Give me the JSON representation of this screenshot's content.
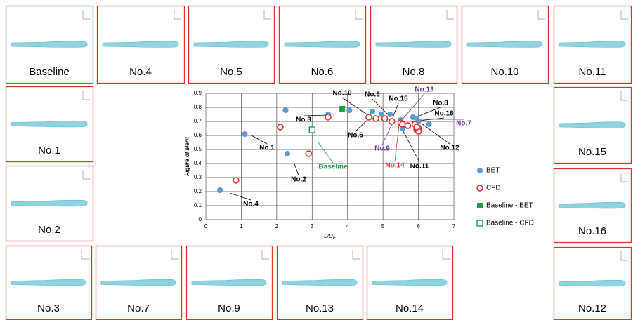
{
  "chart_data": {
    "type": "scatter",
    "y_label": "Figure of Merit",
    "x_label": "L/D",
    "x_label_sub": "E",
    "xlim": [
      0,
      7
    ],
    "xticks": [
      0,
      1,
      2,
      3,
      4,
      5,
      6,
      7
    ],
    "ylim": [
      0,
      0.9
    ],
    "yticks": [
      0,
      0.1,
      0.2,
      0.3,
      0.4,
      0.5,
      0.6,
      0.7,
      0.8,
      0.9
    ],
    "grid": true,
    "legend": "right",
    "series": [
      {
        "name": "BET",
        "color": "#5b9bd5",
        "marker": "filled-circle",
        "x": [
          0.4,
          1.1,
          2.3,
          2.25,
          3.45,
          4.05,
          4.7,
          4.95,
          5.2,
          5.5,
          5.55,
          5.85,
          5.95,
          6.0,
          6.3,
          6.0
        ],
        "values": [
          0.21,
          0.61,
          0.47,
          0.78,
          0.75,
          0.78,
          0.77,
          0.75,
          0.75,
          0.71,
          0.65,
          0.73,
          0.72,
          0.7,
          0.68,
          0.66
        ]
      },
      {
        "name": "CFD",
        "color": "#e0302a",
        "marker": "open-circle",
        "x": [
          0.85,
          2.1,
          2.9,
          3.45,
          4.6,
          4.8,
          5.05,
          5.25,
          5.5,
          5.55,
          5.7,
          5.9,
          5.95,
          6.0,
          6.0,
          5.95
        ],
        "values": [
          0.28,
          0.66,
          0.47,
          0.73,
          0.73,
          0.72,
          0.72,
          0.7,
          0.69,
          0.68,
          0.67,
          0.68,
          0.64,
          0.65,
          0.63,
          0.66
        ]
      },
      {
        "name": "Baseline - BET",
        "color": "#21a04a",
        "marker": "filled-square",
        "x": [
          3.85
        ],
        "values": [
          0.79
        ]
      },
      {
        "name": "Baseline - CFD",
        "color": "#21a04a",
        "marker": "open-square",
        "x": [
          3.0
        ],
        "values": [
          0.64
        ]
      }
    ],
    "annotations": [
      {
        "text": "No.10",
        "color": "#000000"
      },
      {
        "text": "No.5",
        "color": "#000000"
      },
      {
        "text": "No.15",
        "color": "#000000"
      },
      {
        "text": "No.13",
        "color": "#7030a0"
      },
      {
        "text": "No.8",
        "color": "#000000"
      },
      {
        "text": "No.16",
        "color": "#000000"
      },
      {
        "text": "No.7",
        "color": "#7030a0"
      },
      {
        "text": "No.12",
        "color": "#000000"
      },
      {
        "text": "No.11",
        "color": "#000000"
      },
      {
        "text": "No.14",
        "color": "#e0302a"
      },
      {
        "text": "No.9",
        "color": "#7030a0"
      },
      {
        "text": "No.6",
        "color": "#000000"
      },
      {
        "text": "No.3",
        "color": "#000000"
      },
      {
        "text": "No.1",
        "color": "#000000"
      },
      {
        "text": "No.2",
        "color": "#000000"
      },
      {
        "text": "No.4",
        "color": "#000000"
      },
      {
        "text": "Baseline",
        "color": "#21a04a"
      }
    ]
  },
  "panels": [
    {
      "label": "Baseline",
      "border": "#21a04a"
    },
    {
      "label": "No.4",
      "border": "#e0302a"
    },
    {
      "label": "No.5",
      "border": "#e0302a"
    },
    {
      "label": "No.6",
      "border": "#e0302a"
    },
    {
      "label": "No.8",
      "border": "#e0302a"
    },
    {
      "label": "No.10",
      "border": "#e0302a"
    },
    {
      "label": "No.11",
      "border": "#e0302a"
    },
    {
      "label": "No.1",
      "border": "#e0302a"
    },
    {
      "label": "No.2",
      "border": "#e0302a"
    },
    {
      "label": "No.15",
      "border": "#e0302a"
    },
    {
      "label": "No.16",
      "border": "#e0302a"
    },
    {
      "label": "No.3",
      "border": "#e0302a"
    },
    {
      "label": "No.7",
      "border": "#e0302a"
    },
    {
      "label": "No.9",
      "border": "#e0302a"
    },
    {
      "label": "No.13",
      "border": "#e0302a"
    },
    {
      "label": "No.14",
      "border": "#e0302a"
    },
    {
      "label": "No.12",
      "border": "#e0302a"
    }
  ]
}
